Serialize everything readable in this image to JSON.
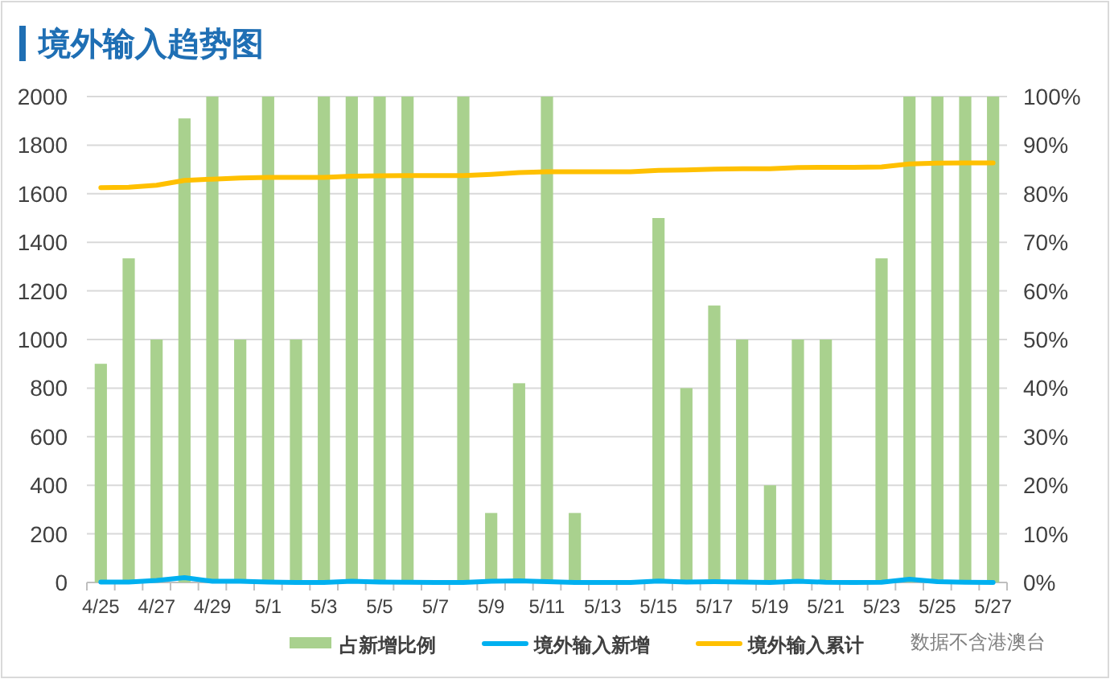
{
  "chart_data": {
    "type": "bar",
    "title": "境外输入趋势图",
    "categories": [
      "4/25",
      null,
      "4/27",
      null,
      "4/29",
      null,
      "5/1",
      null,
      "5/3",
      null,
      "5/5",
      null,
      "5/7",
      null,
      "5/9",
      null,
      "5/11",
      null,
      "5/13",
      null,
      "5/15",
      null,
      "5/17",
      null,
      "5/19",
      null,
      "5/21",
      null,
      "5/23",
      null,
      "5/25",
      null,
      "5/27"
    ],
    "series": [
      {
        "name": "占新增比例",
        "axis": "y2",
        "color": "#a9d18e",
        "values": [
          45,
          66.7,
          50,
          95.5,
          100,
          50,
          100,
          50,
          100,
          100,
          100,
          100,
          0,
          100,
          14.3,
          41,
          100,
          14.3,
          0,
          0,
          75,
          40,
          57,
          50,
          20,
          50,
          50,
          0,
          66.7,
          100,
          100,
          100,
          100
        ]
      },
      {
        "name": "境外输入新增",
        "type": "line",
        "axis": "y",
        "color": "#00b0f0",
        "values": [
          2,
          2,
          8,
          20,
          5,
          5,
          2,
          0,
          0,
          5,
          2,
          1,
          0,
          0,
          5,
          7,
          3,
          0,
          0,
          0,
          6,
          2,
          3,
          2,
          0,
          5,
          1,
          0,
          1,
          13,
          3,
          1,
          0
        ]
      },
      {
        "name": "境外输入累计",
        "type": "line",
        "axis": "y",
        "color": "#ffc000",
        "values": [
          1625,
          1627,
          1635,
          1655,
          1660,
          1665,
          1667,
          1667,
          1667,
          1672,
          1674,
          1675,
          1675,
          1675,
          1680,
          1687,
          1690,
          1690,
          1690,
          1690,
          1696,
          1698,
          1701,
          1703,
          1703,
          1708,
          1709,
          1709,
          1710,
          1723,
          1726,
          1727,
          1727
        ]
      }
    ],
    "ylim": [
      0,
      2000
    ],
    "yticks": [
      0,
      200,
      400,
      600,
      800,
      1000,
      1200,
      1400,
      1600,
      1800,
      2000
    ],
    "y2lim": [
      0,
      100
    ],
    "y2ticks": [
      {
        "value": 0,
        "label": "0%"
      },
      {
        "value": 10,
        "label": "10%"
      },
      {
        "value": 20,
        "label": "20%"
      },
      {
        "value": 30,
        "label": "30%"
      },
      {
        "value": 40,
        "label": "40%"
      },
      {
        "value": 50,
        "label": "50%"
      },
      {
        "value": 60,
        "label": "60%"
      },
      {
        "value": 70,
        "label": "70%"
      },
      {
        "value": 80,
        "label": "80%"
      },
      {
        "value": 90,
        "label": "90%"
      },
      {
        "value": 100,
        "label": "100%"
      }
    ],
    "grid": "y",
    "legend": "bottom",
    "marker": "none",
    "line_style": "solid",
    "annotations": [
      "数据不含港澳台"
    ]
  }
}
